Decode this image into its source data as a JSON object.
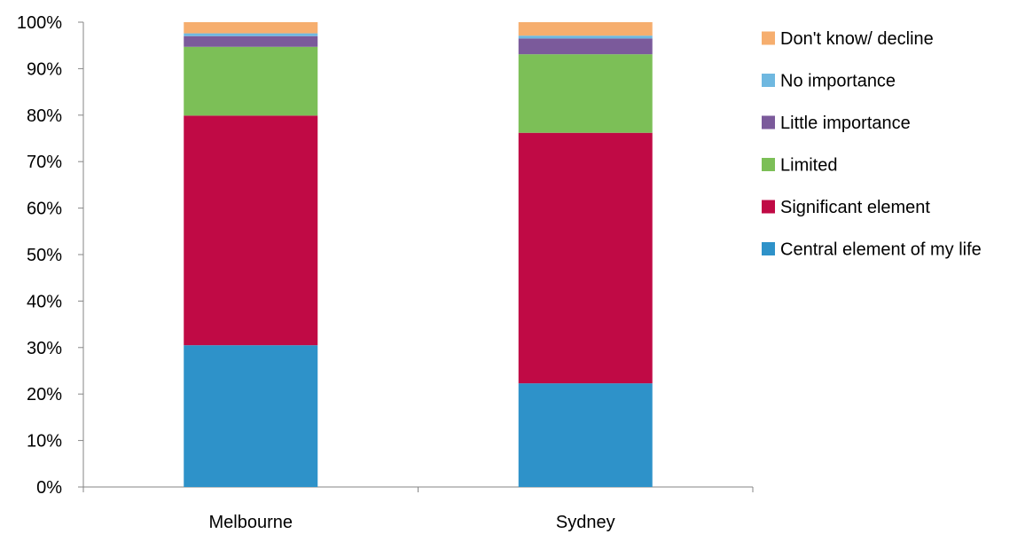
{
  "chart_data": {
    "type": "bar",
    "stacked": true,
    "normalized": true,
    "categories": [
      "Melbourne",
      "Sydney"
    ],
    "series": [
      {
        "name": "Central element of my life",
        "color": "#2E92C9",
        "values": [
          30.5,
          22.3
        ]
      },
      {
        "name": "Significant element",
        "color": "#C00A45",
        "values": [
          49.4,
          53.9
        ]
      },
      {
        "name": "Limited",
        "color": "#7CBF57",
        "values": [
          14.8,
          16.9
        ]
      },
      {
        "name": "Little importance",
        "color": "#7B5A9B",
        "values": [
          2.3,
          3.4
        ]
      },
      {
        "name": "No importance",
        "color": "#6FB8E0",
        "values": [
          0.6,
          0.6
        ]
      },
      {
        "name": "Don't know/ decline",
        "color": "#F6AE6E",
        "values": [
          2.4,
          2.9
        ]
      }
    ],
    "yticks": [
      "0%",
      "10%",
      "20%",
      "30%",
      "40%",
      "50%",
      "60%",
      "70%",
      "80%",
      "90%",
      "100%"
    ],
    "ylim": [
      0,
      100
    ],
    "grid": false,
    "legend_position": "right",
    "title": "",
    "xlabel": "",
    "ylabel": ""
  }
}
